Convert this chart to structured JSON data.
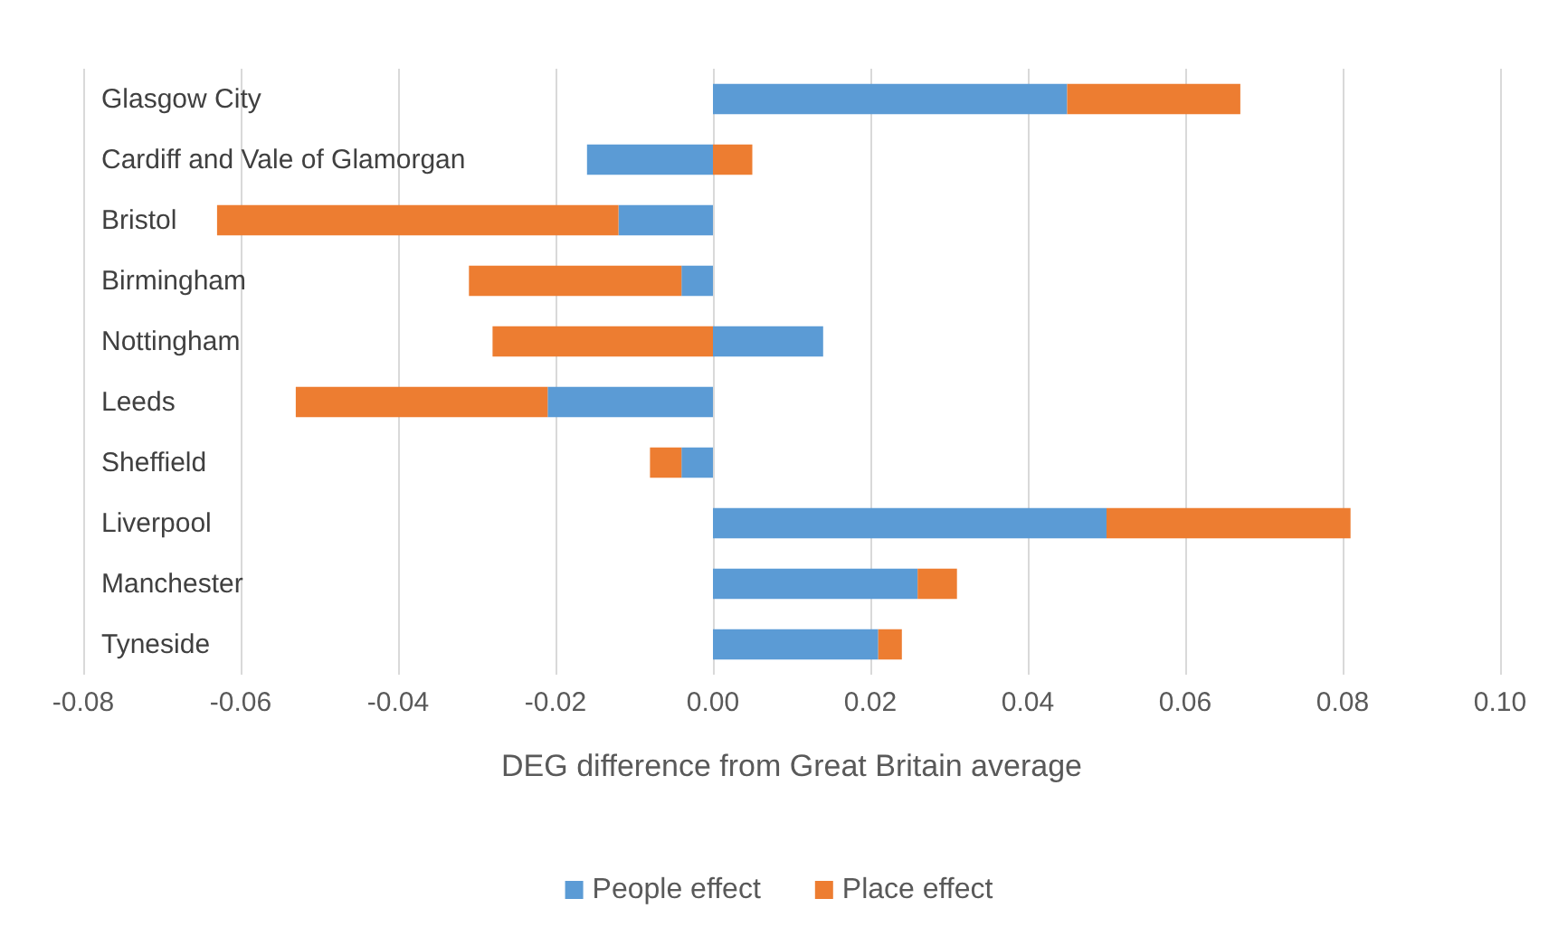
{
  "chart_data": {
    "type": "bar",
    "orientation": "horizontal",
    "stacked": true,
    "xlabel": "DEG difference from Great Britain average",
    "categories": [
      "Glasgow City",
      "Cardiff and Vale of Glamorgan",
      "Bristol",
      "Birmingham",
      "Nottingham",
      "Leeds",
      "Sheffield",
      "Liverpool",
      "Manchester",
      "Tyneside"
    ],
    "series": [
      {
        "name": "People effect",
        "color": "#5b9bd5",
        "values": [
          0.045,
          -0.016,
          -0.012,
          -0.004,
          0.014,
          -0.021,
          -0.004,
          0.05,
          0.026,
          0.021
        ]
      },
      {
        "name": "Place effect",
        "color": "#ed7d31",
        "values": [
          0.022,
          0.005,
          -0.051,
          -0.027,
          -0.028,
          -0.032,
          -0.004,
          0.031,
          0.005,
          0.003
        ]
      }
    ],
    "xlim": [
      -0.08,
      0.1
    ],
    "xticks": [
      {
        "value": -0.08,
        "label": "-0.08"
      },
      {
        "value": -0.06,
        "label": "-0.06"
      },
      {
        "value": -0.04,
        "label": "-0.04"
      },
      {
        "value": -0.02,
        "label": "-0.02"
      },
      {
        "value": 0,
        "label": "0.00"
      },
      {
        "value": 0.02,
        "label": "0.02"
      },
      {
        "value": 0.04,
        "label": "0.04"
      },
      {
        "value": 0.06,
        "label": "0.06"
      },
      {
        "value": 0.08,
        "label": "0.08"
      },
      {
        "value": 0.1,
        "label": "0.10"
      }
    ],
    "grid": "x",
    "legend": "bottom"
  }
}
